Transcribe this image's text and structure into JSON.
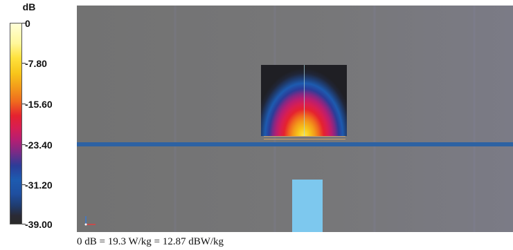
{
  "colorbar": {
    "unit": "dB",
    "ticks": [
      "0",
      "-7.80",
      "-15.60",
      "-23.40",
      "-31.20",
      "-39.00"
    ],
    "range_db": [
      -39.0,
      0
    ]
  },
  "footer": {
    "text": "0 dB = 19.3 W/kg = 12.87 dBW/kg"
  },
  "colors": {
    "background": "#777777",
    "overlay_line": "#2d62a3",
    "probe": "#7dc8ee"
  }
}
